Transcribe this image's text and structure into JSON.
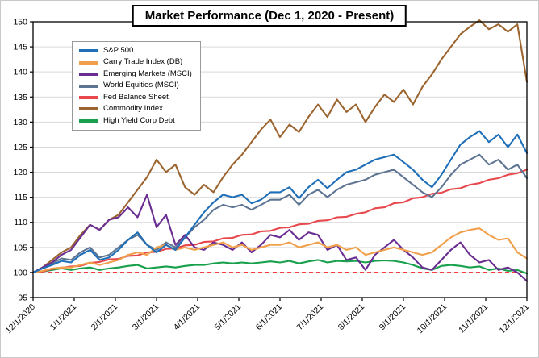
{
  "chart_data": {
    "type": "line",
    "title": "Market Performance (Dec 1, 2020 - Present)",
    "x_tick_labels": [
      "12/1/2020",
      "1/1/2021",
      "2/1/2021",
      "3/1/2021",
      "4/1/2021",
      "5/1/2021",
      "6/1/2021",
      "7/1/2021",
      "8/1/2021",
      "9/1/2021",
      "10/1/2021",
      "11/1/2021",
      "12/1/2021"
    ],
    "x_unit": "weekly samples from 12/1/2020 to 12/1/2021, indexed to 100 at start",
    "ylim": [
      95,
      150
    ],
    "y_ticks": [
      95,
      100,
      105,
      110,
      115,
      120,
      125,
      130,
      135,
      140,
      145,
      150
    ],
    "grid": "horizontal",
    "legend_position": "top-left",
    "baseline": {
      "value": 100,
      "color": "#FF0000",
      "style": "dashed"
    },
    "series": [
      {
        "name": "S&P 500",
        "color": "#1F6FB8",
        "values": [
          100,
          100.8,
          101.5,
          102.3,
          102.0,
          103.5,
          104.5,
          102.5,
          103.0,
          104.5,
          106.5,
          108.0,
          105.5,
          104.0,
          105.5,
          104.5,
          107.0,
          109.5,
          112.0,
          114.0,
          115.5,
          115.0,
          115.5,
          113.8,
          114.5,
          116.0,
          116.0,
          117.0,
          114.8,
          117.0,
          118.5,
          116.8,
          118.5,
          120.0,
          120.5,
          121.5,
          122.5,
          123.0,
          123.5,
          122.0,
          120.5,
          118.5,
          117.0,
          119.5,
          122.5,
          125.5,
          127.0,
          128.2,
          126.0,
          127.5,
          125.0,
          127.5,
          123.8
        ]
      },
      {
        "name": "Carry Trade Index (DB)",
        "color": "#F0A04B",
        "values": [
          100,
          100.3,
          100.8,
          101.0,
          101.0,
          101.5,
          102.0,
          101.5,
          102.0,
          102.5,
          103.5,
          104.0,
          103.5,
          105.0,
          105.5,
          104.5,
          105.0,
          104.5,
          105.0,
          105.5,
          106.0,
          105.0,
          105.5,
          104.5,
          105.0,
          105.5,
          105.5,
          106.0,
          105.0,
          105.5,
          106.0,
          105.0,
          105.5,
          104.5,
          105.0,
          103.5,
          104.0,
          104.5,
          105.0,
          104.5,
          104.0,
          103.5,
          104.0,
          105.5,
          107.0,
          108.0,
          108.5,
          108.8,
          107.5,
          106.5,
          106.8,
          104.0,
          102.8
        ]
      },
      {
        "name": "Emerging Markets (MSCI)",
        "color": "#6A2D91",
        "values": [
          100,
          101.0,
          102.0,
          103.5,
          104.5,
          107.0,
          109.5,
          108.5,
          110.5,
          111.0,
          113.0,
          111.0,
          115.5,
          109.0,
          111.5,
          105.5,
          107.5,
          105.0,
          104.5,
          106.0,
          105.5,
          104.5,
          106.0,
          104.0,
          105.5,
          107.5,
          107.0,
          108.5,
          106.5,
          108.0,
          107.5,
          104.5,
          105.5,
          102.5,
          103.0,
          100.5,
          103.5,
          105.0,
          106.5,
          104.5,
          103.0,
          101.0,
          100.5,
          102.5,
          104.5,
          106.0,
          103.5,
          102.0,
          102.5,
          100.5,
          101.0,
          100.0,
          98.3
        ]
      },
      {
        "name": "World Equities (MSCI)",
        "color": "#5E7493",
        "values": [
          100,
          100.9,
          101.8,
          102.8,
          102.5,
          104.0,
          105.0,
          103.0,
          103.5,
          105.0,
          106.5,
          107.5,
          105.5,
          104.5,
          106.0,
          105.0,
          107.0,
          109.0,
          110.5,
          112.5,
          113.5,
          113.0,
          113.5,
          112.5,
          113.5,
          114.5,
          114.5,
          115.5,
          113.5,
          115.5,
          116.5,
          115.0,
          116.5,
          117.5,
          118.0,
          118.5,
          119.5,
          120.0,
          120.5,
          119.0,
          117.5,
          116.0,
          115.0,
          117.0,
          119.5,
          121.5,
          122.5,
          123.5,
          121.5,
          122.5,
          120.5,
          121.5,
          118.8
        ]
      },
      {
        "name": "Fed Balance Sheet",
        "color": "#E8484C",
        "values": [
          100,
          100.2,
          100.7,
          100.9,
          101.2,
          101.3,
          101.9,
          102.1,
          102.6,
          102.7,
          103.3,
          103.4,
          104.0,
          104.1,
          104.7,
          104.8,
          105.4,
          105.5,
          106.1,
          106.2,
          106.8,
          106.9,
          107.5,
          107.6,
          108.2,
          108.3,
          108.9,
          109.0,
          109.6,
          109.7,
          110.3,
          110.4,
          111.0,
          111.1,
          111.7,
          112.0,
          112.8,
          113.0,
          113.8,
          114.0,
          114.8,
          115.0,
          115.7,
          115.9,
          116.6,
          116.8,
          117.5,
          117.8,
          118.5,
          118.8,
          119.5,
          119.8,
          120.5
        ]
      },
      {
        "name": "Commodity Index",
        "color": "#9C6530",
        "values": [
          100,
          101.0,
          102.5,
          104.0,
          105.0,
          107.5,
          109.5,
          108.5,
          110.5,
          111.5,
          114.0,
          116.5,
          119.0,
          122.5,
          120.0,
          121.5,
          117.0,
          115.5,
          117.5,
          116.0,
          119.0,
          121.5,
          123.5,
          126.0,
          128.5,
          130.5,
          127.0,
          129.5,
          128.0,
          131.0,
          133.5,
          131.0,
          134.5,
          132.0,
          133.5,
          130.0,
          133.0,
          135.5,
          134.0,
          136.5,
          133.5,
          137.0,
          139.5,
          142.5,
          145.0,
          147.5,
          149.0,
          150.3,
          148.5,
          149.5,
          148.0,
          149.5,
          138.0
        ]
      },
      {
        "name": "High Yield Corp Debt",
        "color": "#18A04C",
        "values": [
          100,
          100.2,
          100.5,
          100.8,
          100.5,
          100.8,
          101.0,
          100.5,
          100.8,
          101.0,
          101.3,
          101.5,
          100.8,
          101.0,
          101.2,
          101.0,
          101.3,
          101.5,
          101.5,
          101.8,
          102.0,
          101.8,
          102.0,
          101.8,
          102.0,
          102.2,
          102.0,
          102.3,
          101.8,
          102.2,
          102.5,
          102.0,
          102.3,
          102.2,
          102.3,
          102.0,
          102.3,
          102.4,
          102.3,
          102.0,
          101.5,
          100.8,
          100.5,
          101.3,
          101.5,
          101.3,
          101.0,
          101.2,
          100.5,
          100.8,
          100.3,
          100.5,
          99.8
        ]
      }
    ]
  }
}
